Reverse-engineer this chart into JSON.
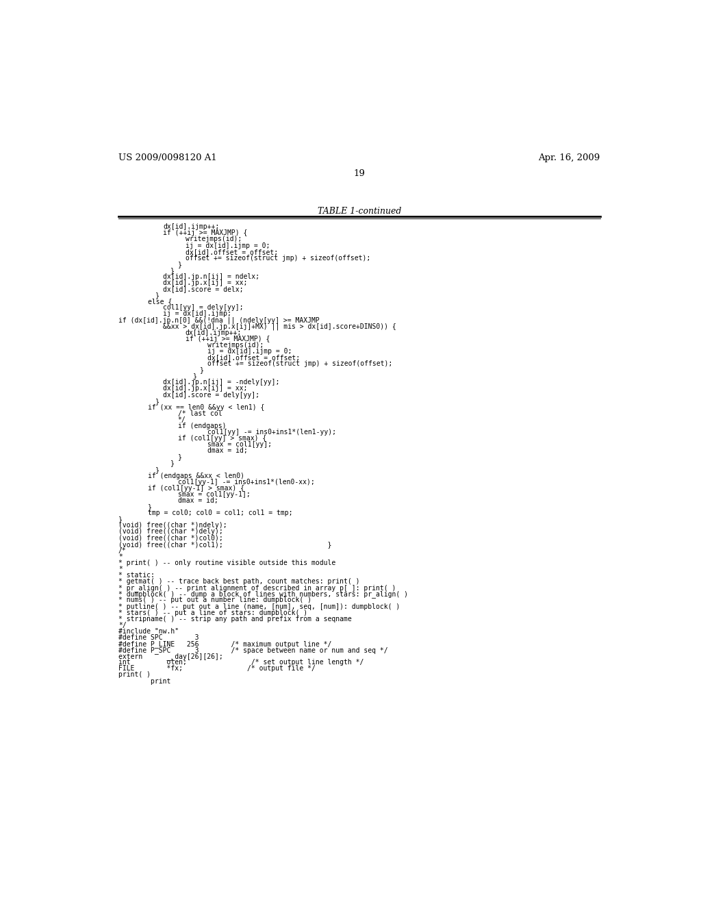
{
  "header_left": "US 2009/0098120 A1",
  "header_right": "Apr. 16, 2009",
  "page_number": "19",
  "table_title": "TABLE 1-continued",
  "background_color": "#ffffff",
  "text_color": "#000000",
  "font_size": 7.0,
  "header_font_size": 9.5,
  "title_font_size": 9.0,
  "code_lines": [
    [
      "dx[id].ijmp++;",
      6
    ],
    [
      "if (++ij >= MAXJMP) {",
      6
    ],
    [
      "writejmps(id);",
      9
    ],
    [
      "ij = dx[id].ijmp = 0;",
      9
    ],
    [
      "dx[id].offset = offset;",
      9
    ],
    [
      "offset += sizeof(struct jmp) + sizeof(offset);",
      9
    ],
    [
      "}",
      8
    ],
    [
      "}",
      7
    ],
    [
      "dx[id].jp.n[ij] = ndelx;",
      6
    ],
    [
      "dx[id].jp.x[ij] = xx;",
      6
    ],
    [
      "dx[id].score = delx;",
      6
    ],
    [
      "}",
      5
    ],
    [
      "else {",
      4
    ],
    [
      "col1[yy] = dely[yy];",
      6
    ],
    [
      "ij = dx[id].ijmp;",
      6
    ],
    [
      "if (dx[id].jp.n[0] &&(!dna || (ndely[yy] >= MAXJMP",
      0
    ],
    [
      "&&xx > dx[id].jp.x[ij]+MX) || mis > dx[id].score+DINS0)) {",
      6
    ],
    [
      "dx[id].ijmp++;",
      9
    ],
    [
      "if (++ij >= MAXJMP) {",
      9
    ],
    [
      "writejmps(id);",
      12
    ],
    [
      "ij = dx[id].ijmp = 0;",
      12
    ],
    [
      "dx[id].offset = offset;",
      12
    ],
    [
      "offset += sizeof(struct jmp) + sizeof(offset);",
      12
    ],
    [
      "}",
      11
    ],
    [
      "}",
      10
    ],
    [
      "dx[id].jp.n[ij] = -ndely[yy];",
      6
    ],
    [
      "dx[id].jp.x[ij] = xx;",
      6
    ],
    [
      "dx[id].score = dely[yy];",
      6
    ],
    [
      "}",
      5
    ],
    [
      "if (xx == len0 &&yy < len1) {",
      4
    ],
    [
      "/* last col",
      8
    ],
    [
      "*/",
      8
    ],
    [
      "if (endgaps)",
      8
    ],
    [
      "col1[yy] -= ins0+ins1*(len1-yy);",
      12
    ],
    [
      "if (col1[yy] > smax) {",
      8
    ],
    [
      "smax = col1[yy];",
      12
    ],
    [
      "dmax = id;",
      12
    ],
    [
      "}",
      8
    ],
    [
      "}",
      7
    ],
    [
      "}",
      5
    ],
    [
      "if (endgaps &&xx < len0)",
      4
    ],
    [
      "col1[yy-1] -= ins0+ins1*(len0-xx);",
      8
    ],
    [
      "if (col1[yy-1] > smax) {",
      4
    ],
    [
      "smax = col1[yy-1];",
      8
    ],
    [
      "dmax = id;",
      8
    ],
    [
      "}",
      4
    ],
    [
      "tmp = col0; col0 = col1; col1 = tmp;",
      4
    ],
    [
      "}",
      0
    ],
    [
      "(void) free((char *)ndely);",
      0
    ],
    [
      "(void) free((char *)dely);",
      0
    ],
    [
      "(void) free((char *)col0);",
      0
    ],
    [
      "(void) free((char *)col1);                          }",
      0
    ],
    [
      "/*",
      0
    ],
    [
      "*",
      0
    ],
    [
      "* print( ) -- only routine visible outside this module",
      0
    ],
    [
      "*",
      0
    ],
    [
      "* static:",
      0
    ],
    [
      "* getmat( ) -- trace back best path, count matches: print( )",
      0
    ],
    [
      "* pr_align( ) -- print alignment of described in array p[ ]: print( )",
      0
    ],
    [
      "* dumpblock( ) -- dump a block of lines with numbers, stars: pr_align( )",
      0
    ],
    [
      "* nums( ) -- put out a number line: dumpblock( )",
      0
    ],
    [
      "* putline( ) -- put out a line (name, [num], seq, [num]): dumpblock( )",
      0
    ],
    [
      "* stars( ) -- put a line of stars: dumpblock( )",
      0
    ],
    [
      "* stripname( ) -- strip any path and prefix from a seqname",
      0
    ],
    [
      "*/",
      0
    ],
    [
      "#include \"nw.h\"",
      0
    ],
    [
      "#define SPC        3",
      0
    ],
    [
      "#define P_LINE   256        /* maximum output line */",
      0
    ],
    [
      "#define P_SPC      3        /* space between name or num and seq */",
      0
    ],
    [
      "extern      __day[26][26];",
      0
    ],
    [
      "int         olen;                /* set output line length */",
      0
    ],
    [
      "FILE        *fx;                /* output file */",
      0
    ],
    [
      "print( )",
      0
    ],
    [
      "        print",
      0
    ]
  ]
}
